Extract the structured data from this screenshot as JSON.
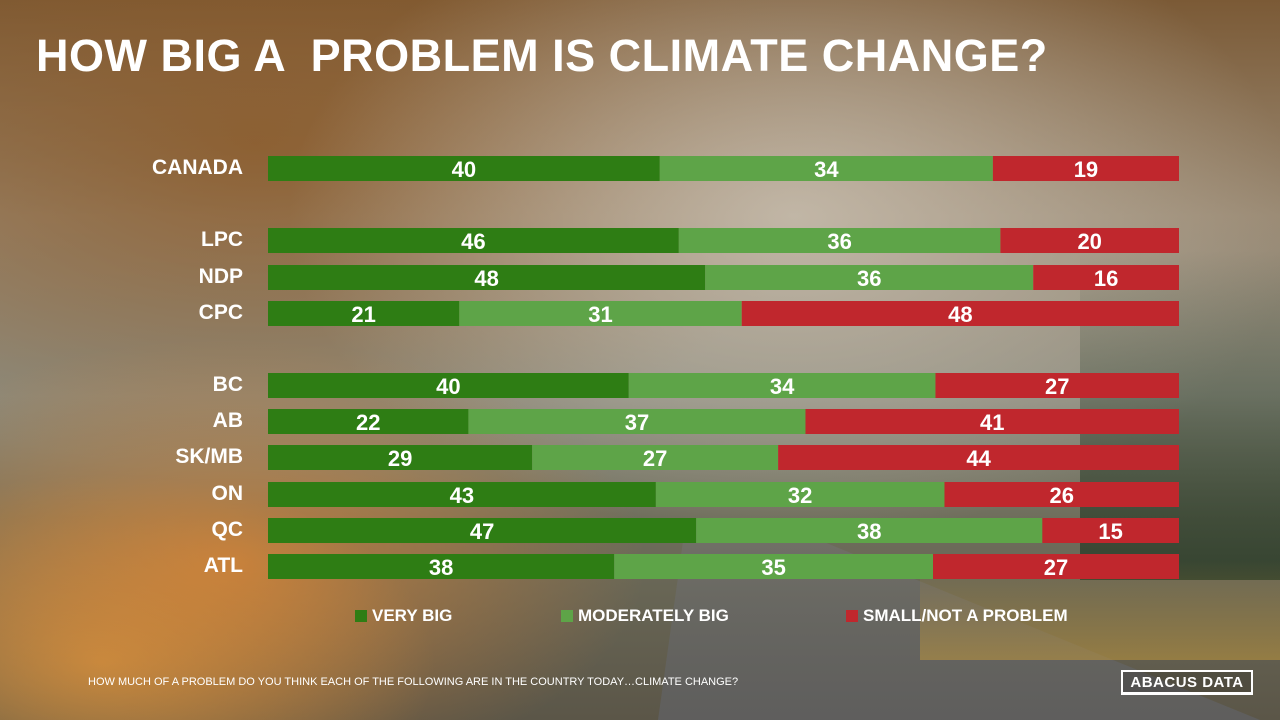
{
  "title": "HOW BIG A  PROBLEM IS CLIMATE CHANGE?",
  "chart_data": {
    "type": "bar",
    "orientation": "horizontal",
    "stacked": true,
    "normalized": true,
    "categories": [
      "CANADA",
      "LPC",
      "NDP",
      "CPC",
      "BC",
      "AB",
      "SK/MB",
      "ON",
      "QC",
      "ATL"
    ],
    "groups": [
      [
        "CANADA"
      ],
      [
        "LPC",
        "NDP",
        "CPC"
      ],
      [
        "BC",
        "AB",
        "SK/MB",
        "ON",
        "QC",
        "ATL"
      ]
    ],
    "series": [
      {
        "name": "VERY BIG",
        "color": "#2e7d14",
        "values": [
          40,
          46,
          48,
          21,
          40,
          22,
          29,
          43,
          47,
          38
        ]
      },
      {
        "name": "MODERATELY BIG",
        "color": "#5ea448",
        "values": [
          34,
          36,
          36,
          31,
          34,
          37,
          27,
          32,
          38,
          35
        ]
      },
      {
        "name": "SMALL/NOT A PROBLEM",
        "color": "#c0272d",
        "values": [
          19,
          20,
          16,
          48,
          27,
          41,
          44,
          26,
          15,
          27
        ]
      }
    ],
    "legend_position": "bottom",
    "grid": false
  },
  "footnote": "HOW MUCH OF A PROBLEM DO YOU THINK EACH OF THE FOLLOWING ARE IN THE COUNTRY TODAY…CLIMATE CHANGE?",
  "logo_text": "ABACUS DATA"
}
